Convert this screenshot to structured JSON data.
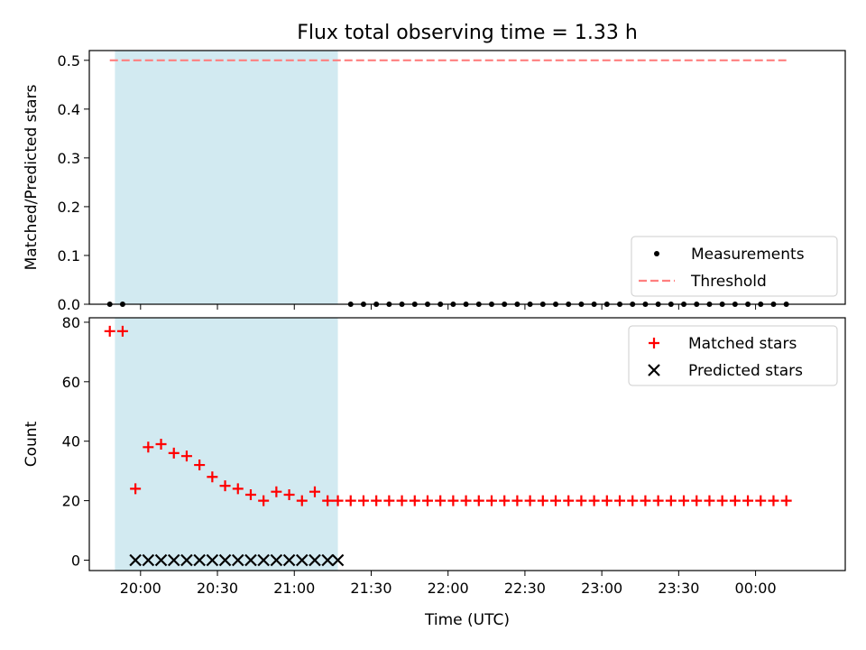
{
  "chart_data": {
    "title": "Flux total observing time = 1.33 h",
    "xlabel": "Time (UTC)",
    "x_tick_labels": [
      "20:00",
      "20:30",
      "21:00",
      "21:30",
      "22:00",
      "22:30",
      "23:00",
      "23:30",
      "00:00"
    ],
    "x_range": [
      "19:40",
      "00:35"
    ],
    "highlight_span": {
      "start": "19:50",
      "end": "21:17",
      "color": "#add8e6"
    },
    "panels": [
      {
        "type": "scatter",
        "ylabel": "Matched/Predicted stars",
        "ylim": [
          0,
          0.52
        ],
        "y_ticks": [
          "0.0",
          "0.1",
          "0.2",
          "0.3",
          "0.4",
          "0.5"
        ],
        "series": [
          {
            "name": "Measurements",
            "marker": "dot",
            "color": "#000000",
            "points": [
              [
                "19:48",
                0
              ],
              [
                "19:53",
                0
              ],
              [
                "21:22",
                0
              ],
              [
                "21:27",
                0
              ],
              [
                "21:32",
                0
              ],
              [
                "21:37",
                0
              ],
              [
                "21:42",
                0
              ],
              [
                "21:47",
                0
              ],
              [
                "21:52",
                0
              ],
              [
                "21:57",
                0
              ],
              [
                "22:02",
                0
              ],
              [
                "22:07",
                0
              ],
              [
                "22:12",
                0
              ],
              [
                "22:17",
                0
              ],
              [
                "22:22",
                0
              ],
              [
                "22:27",
                0
              ],
              [
                "22:32",
                0
              ],
              [
                "22:37",
                0
              ],
              [
                "22:42",
                0
              ],
              [
                "22:47",
                0
              ],
              [
                "22:52",
                0
              ],
              [
                "22:57",
                0
              ],
              [
                "23:02",
                0
              ],
              [
                "23:07",
                0
              ],
              [
                "23:12",
                0
              ],
              [
                "23:17",
                0
              ],
              [
                "23:22",
                0
              ],
              [
                "23:27",
                0
              ],
              [
                "23:32",
                0
              ],
              [
                "23:37",
                0
              ],
              [
                "23:42",
                0
              ],
              [
                "23:47",
                0
              ],
              [
                "23:52",
                0
              ],
              [
                "23:57",
                0
              ],
              [
                "00:02",
                0
              ],
              [
                "00:07",
                0
              ],
              [
                "00:12",
                0
              ]
            ]
          },
          {
            "name": "Threshold",
            "marker": "dashed-line",
            "color": "#ff7f7f",
            "points": [
              [
                "19:48",
                0.5
              ],
              [
                "00:12",
                0.5
              ]
            ]
          }
        ],
        "legend": "lower right"
      },
      {
        "type": "scatter",
        "ylabel": "Count",
        "ylim": [
          -3.5,
          81.5
        ],
        "y_ticks": [
          "0",
          "20",
          "40",
          "60",
          "80"
        ],
        "series": [
          {
            "name": "Matched stars",
            "marker": "plus",
            "color": "#ff0000",
            "points": [
              [
                "19:48",
                77
              ],
              [
                "19:53",
                77
              ],
              [
                "19:58",
                24
              ],
              [
                "20:03",
                38
              ],
              [
                "20:08",
                39
              ],
              [
                "20:13",
                36
              ],
              [
                "20:18",
                35
              ],
              [
                "20:23",
                32
              ],
              [
                "20:28",
                28
              ],
              [
                "20:33",
                25
              ],
              [
                "20:38",
                24
              ],
              [
                "20:43",
                22
              ],
              [
                "20:48",
                20
              ],
              [
                "20:53",
                23
              ],
              [
                "20:58",
                22
              ],
              [
                "21:03",
                20
              ],
              [
                "21:08",
                23
              ],
              [
                "21:13",
                20
              ],
              [
                "21:17",
                20
              ],
              [
                "21:22",
                20
              ],
              [
                "21:27",
                20
              ],
              [
                "21:32",
                20
              ],
              [
                "21:37",
                20
              ],
              [
                "21:42",
                20
              ],
              [
                "21:47",
                20
              ],
              [
                "21:52",
                20
              ],
              [
                "21:57",
                20
              ],
              [
                "22:02",
                20
              ],
              [
                "22:07",
                20
              ],
              [
                "22:12",
                20
              ],
              [
                "22:17",
                20
              ],
              [
                "22:22",
                20
              ],
              [
                "22:27",
                20
              ],
              [
                "22:32",
                20
              ],
              [
                "22:37",
                20
              ],
              [
                "22:42",
                20
              ],
              [
                "22:47",
                20
              ],
              [
                "22:52",
                20
              ],
              [
                "22:57",
                20
              ],
              [
                "23:02",
                20
              ],
              [
                "23:07",
                20
              ],
              [
                "23:12",
                20
              ],
              [
                "23:17",
                20
              ],
              [
                "23:22",
                20
              ],
              [
                "23:27",
                20
              ],
              [
                "23:32",
                20
              ],
              [
                "23:37",
                20
              ],
              [
                "23:42",
                20
              ],
              [
                "23:47",
                20
              ],
              [
                "23:52",
                20
              ],
              [
                "23:57",
                20
              ],
              [
                "00:02",
                20
              ],
              [
                "00:07",
                20
              ],
              [
                "00:12",
                20
              ]
            ]
          },
          {
            "name": "Predicted stars",
            "marker": "x",
            "color": "#000000",
            "points": [
              [
                "19:58",
                0
              ],
              [
                "20:03",
                0
              ],
              [
                "20:08",
                0
              ],
              [
                "20:13",
                0
              ],
              [
                "20:18",
                0
              ],
              [
                "20:23",
                0
              ],
              [
                "20:28",
                0
              ],
              [
                "20:33",
                0
              ],
              [
                "20:38",
                0
              ],
              [
                "20:43",
                0
              ],
              [
                "20:48",
                0
              ],
              [
                "20:53",
                0
              ],
              [
                "20:58",
                0
              ],
              [
                "21:03",
                0
              ],
              [
                "21:08",
                0
              ],
              [
                "21:13",
                0
              ],
              [
                "21:17",
                0
              ]
            ]
          }
        ],
        "legend": "upper right"
      }
    ]
  }
}
